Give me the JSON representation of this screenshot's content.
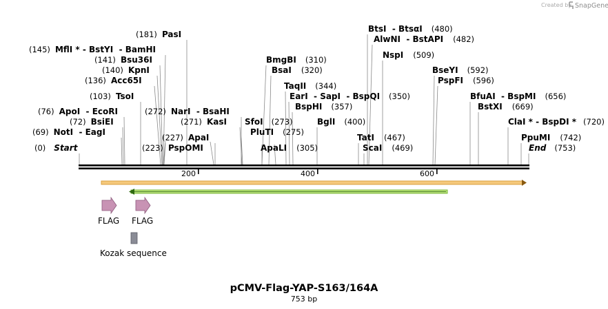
{
  "credit": {
    "prefix": "Created by",
    "brand": "SnapGene"
  },
  "map": {
    "title": "pCMV-Flag-YAP-S163/164A",
    "length_label": "753 bp",
    "ticks": [
      "200",
      "400",
      "600"
    ]
  },
  "sites": [
    {
      "key": "start",
      "pos": "(0)",
      "name": "Start",
      "italic": true
    },
    {
      "key": "noti",
      "pos": "(69)",
      "name": "NotI  - EagI"
    },
    {
      "key": "bsiei",
      "pos": "(72)",
      "name": "BsiEI"
    },
    {
      "key": "apoi",
      "pos": "(76)",
      "name": "ApoI  - EcoRI"
    },
    {
      "key": "tsoi",
      "pos": "(103)",
      "name": "TsoI"
    },
    {
      "key": "acc65i",
      "pos": "(136)",
      "name": "Acc65I"
    },
    {
      "key": "kpni",
      "pos": "(140)",
      "name": "KpnI"
    },
    {
      "key": "bsu36i",
      "pos": "(141)",
      "name": "Bsu36I"
    },
    {
      "key": "mfli",
      "pos": "(145)",
      "name": "MflI * - BstYI  - BamHI"
    },
    {
      "key": "pasi",
      "pos": "(181)",
      "name": "PasI"
    },
    {
      "key": "pspomi",
      "pos": "(223)",
      "name": "PspOMI"
    },
    {
      "key": "apai",
      "pos": "(227)",
      "name": "ApaI"
    },
    {
      "key": "kasi",
      "pos": "(271)",
      "name": "KasI"
    },
    {
      "key": "nari",
      "pos": "(272)",
      "name": "NarI  - BsaHI"
    },
    {
      "key": "sfoi",
      "pos": "(273)",
      "name": "SfoI"
    },
    {
      "key": "pluti",
      "pos": "(275)",
      "name": "PluTI"
    },
    {
      "key": "apali",
      "pos": "(305)",
      "name": "ApaLI"
    },
    {
      "key": "bmgbi",
      "pos": "(310)",
      "name": "BmgBI"
    },
    {
      "key": "bsai",
      "pos": "(320)",
      "name": "BsaI"
    },
    {
      "key": "taqii",
      "pos": "(344)",
      "name": "TaqII"
    },
    {
      "key": "eari",
      "pos": "(350)",
      "name": "EarI  - SapI  - BspQI"
    },
    {
      "key": "bsphi",
      "pos": "(357)",
      "name": "BspHI"
    },
    {
      "key": "bgli",
      "pos": "(400)",
      "name": "BglI"
    },
    {
      "key": "tati",
      "pos": "(467)",
      "name": "TatI"
    },
    {
      "key": "scai",
      "pos": "(469)",
      "name": "ScaI"
    },
    {
      "key": "btsi",
      "pos": "(480)",
      "name": "BtsI  - BtsαI"
    },
    {
      "key": "alwni",
      "pos": "(482)",
      "name": "AlwNI  - BstAPI"
    },
    {
      "key": "nspi",
      "pos": "(509)",
      "name": "NspI"
    },
    {
      "key": "bseyi",
      "pos": "(592)",
      "name": "BseYI"
    },
    {
      "key": "pspfi",
      "pos": "(596)",
      "name": "PspFI"
    },
    {
      "key": "bfuai",
      "pos": "(656)",
      "name": "BfuAI  - BspMI"
    },
    {
      "key": "bstxi",
      "pos": "(669)",
      "name": "BstXI"
    },
    {
      "key": "clai",
      "pos": "(720)",
      "name": "ClaI * - BspDI *"
    },
    {
      "key": "ppumi",
      "pos": "(742)",
      "name": "PpuMI"
    },
    {
      "key": "end",
      "pos": "(753)",
      "name": "End",
      "italic": true
    }
  ],
  "features": {
    "flag1": "FLAG",
    "flag2": "FLAG",
    "kozak": "Kozak sequence"
  },
  "colors": {
    "orange_bar": "#f5c97c",
    "orange_edge": "#d9a040",
    "green_bar": "#b7e07a",
    "green_edge": "#7cb83a",
    "flag_fill": "#c893b4",
    "kozak_fill": "#8a8c96"
  }
}
